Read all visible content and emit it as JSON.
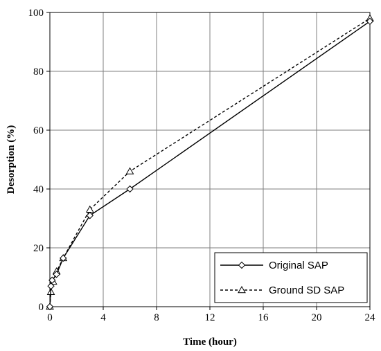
{
  "chart_data": {
    "type": "line",
    "title": "",
    "xlabel": "Time (hour)",
    "ylabel": "Desorption (%)",
    "xlim": [
      0,
      24
    ],
    "ylim": [
      0,
      100
    ],
    "xticks": [
      0,
      4,
      8,
      12,
      16,
      20,
      24
    ],
    "yticks": [
      0,
      20,
      40,
      60,
      80,
      100
    ],
    "grid": true,
    "legend_position": "bottom-right",
    "series": [
      {
        "name": "Original SAP",
        "line_style": "solid",
        "marker": "diamond",
        "color": "#000000",
        "x": [
          0,
          0.08,
          0.17,
          0.5,
          1,
          3,
          6,
          24
        ],
        "y": [
          0,
          7,
          9,
          11,
          16.5,
          31,
          40,
          97
        ]
      },
      {
        "name": "Ground SD SAP",
        "line_style": "dashed",
        "marker": "triangle",
        "color": "#000000",
        "x": [
          0,
          0.08,
          0.25,
          0.5,
          1,
          3,
          6,
          24
        ],
        "y": [
          0,
          5,
          8.5,
          12,
          16.5,
          33,
          46,
          98
        ]
      }
    ]
  }
}
